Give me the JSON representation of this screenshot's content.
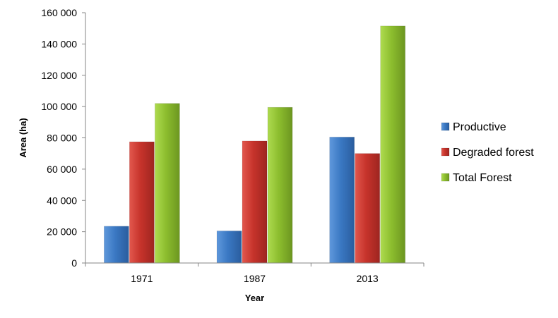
{
  "chart_data": {
    "type": "bar",
    "title": "",
    "xlabel": "Year",
    "ylabel": "Area (ha)",
    "categories": [
      "1971",
      "1987",
      "2013"
    ],
    "series": [
      {
        "name": "Productive",
        "values": [
          23500,
          20500,
          80500
        ],
        "color": "#3a78c3"
      },
      {
        "name": "Degraded forest",
        "values": [
          77500,
          78000,
          70000
        ],
        "color": "#c6332b"
      },
      {
        "name": "Total Forest",
        "values": [
          102000,
          99500,
          151500
        ],
        "color": "#8cbd2e"
      }
    ],
    "ylim": [
      0,
      160000
    ],
    "yticks": [
      0,
      20000,
      40000,
      60000,
      80000,
      100000,
      120000,
      140000,
      160000
    ],
    "ytick_labels": [
      "0",
      "20 000",
      "40 000",
      "60 000",
      "80 000",
      "100 000",
      "120 000",
      "140 000",
      "160 000"
    ],
    "grid": false,
    "legend_position": "right"
  }
}
